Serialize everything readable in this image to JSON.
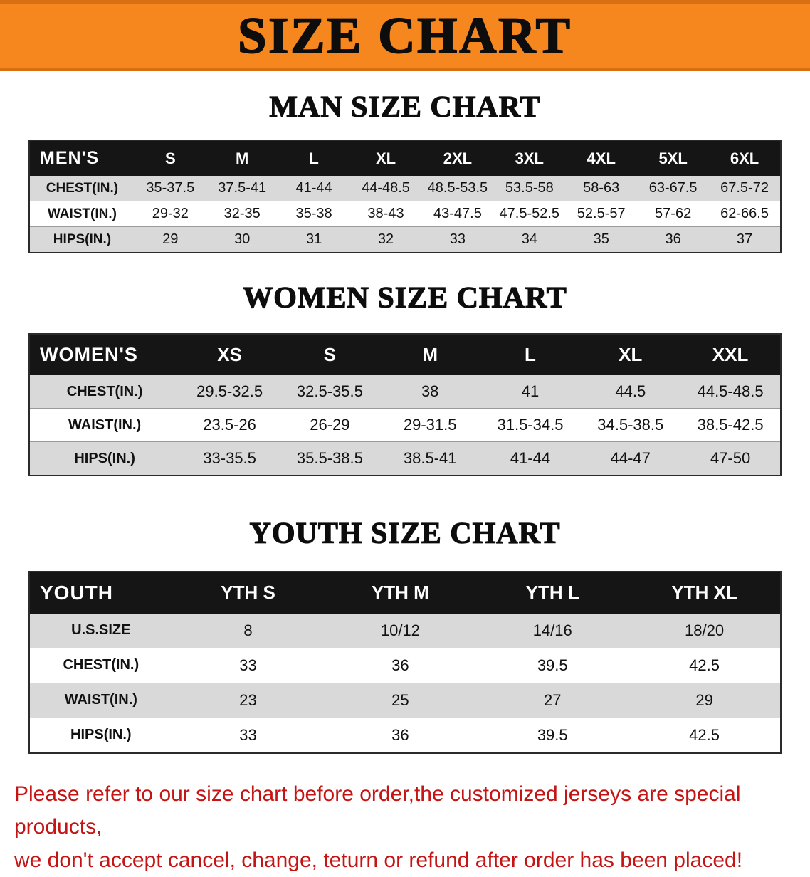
{
  "banner": {
    "title": "SIZE CHART"
  },
  "sections": [
    {
      "heading": "MAN SIZE CHART",
      "table": {
        "header": [
          "MEN'S",
          "S",
          "M",
          "L",
          "XL",
          "2XL",
          "3XL",
          "4XL",
          "5XL",
          "6XL"
        ],
        "rows": [
          [
            "CHEST(IN.)",
            "35-37.5",
            "37.5-41",
            "41-44",
            "44-48.5",
            "48.5-53.5",
            "53.5-58",
            "58-63",
            "63-67.5",
            "67.5-72"
          ],
          [
            "WAIST(IN.)",
            "29-32",
            "32-35",
            "35-38",
            "38-43",
            "43-47.5",
            "47.5-52.5",
            "52.5-57",
            "57-62",
            "62-66.5"
          ],
          [
            "HIPS(IN.)",
            "29",
            "30",
            "31",
            "32",
            "33",
            "34",
            "35",
            "36",
            "37"
          ]
        ]
      }
    },
    {
      "heading": "WOMEN SIZE CHART",
      "table": {
        "header": [
          "WOMEN'S",
          "XS",
          "S",
          "M",
          "L",
          "XL",
          "XXL"
        ],
        "rows": [
          [
            "CHEST(IN.)",
            "29.5-32.5",
            "32.5-35.5",
            "38",
            "41",
            "44.5",
            "44.5-48.5"
          ],
          [
            "WAIST(IN.)",
            "23.5-26",
            "26-29",
            "29-31.5",
            "31.5-34.5",
            "34.5-38.5",
            "38.5-42.5"
          ],
          [
            "HIPS(IN.)",
            "33-35.5",
            "35.5-38.5",
            "38.5-41",
            "41-44",
            "44-47",
            "47-50"
          ]
        ]
      }
    },
    {
      "heading": "YOUTH SIZE CHART",
      "table": {
        "header": [
          "YOUTH",
          "YTH S",
          "YTH M",
          "YTH L",
          "YTH XL"
        ],
        "rows": [
          [
            "U.S.SIZE",
            "8",
            "10/12",
            "14/16",
            "18/20"
          ],
          [
            "CHEST(IN.)",
            "33",
            "36",
            "39.5",
            "42.5"
          ],
          [
            "WAIST(IN.)",
            "23",
            "25",
            "27",
            "29"
          ],
          [
            "HIPS(IN.)",
            "33",
            "36",
            "39.5",
            "42.5"
          ]
        ]
      }
    }
  ],
  "footer": {
    "line1": "Please refer to our size chart before order,the customized jerseys are special products,",
    "line2": "we don't accept cancel, change, teturn or refund after order has been placed!"
  },
  "colors": {
    "banner_bg": "#f6871f",
    "banner_edge": "#d96f10",
    "header_bg": "#151515",
    "row_alt_bg": "#d9d9d9",
    "note_color": "#c41414"
  }
}
